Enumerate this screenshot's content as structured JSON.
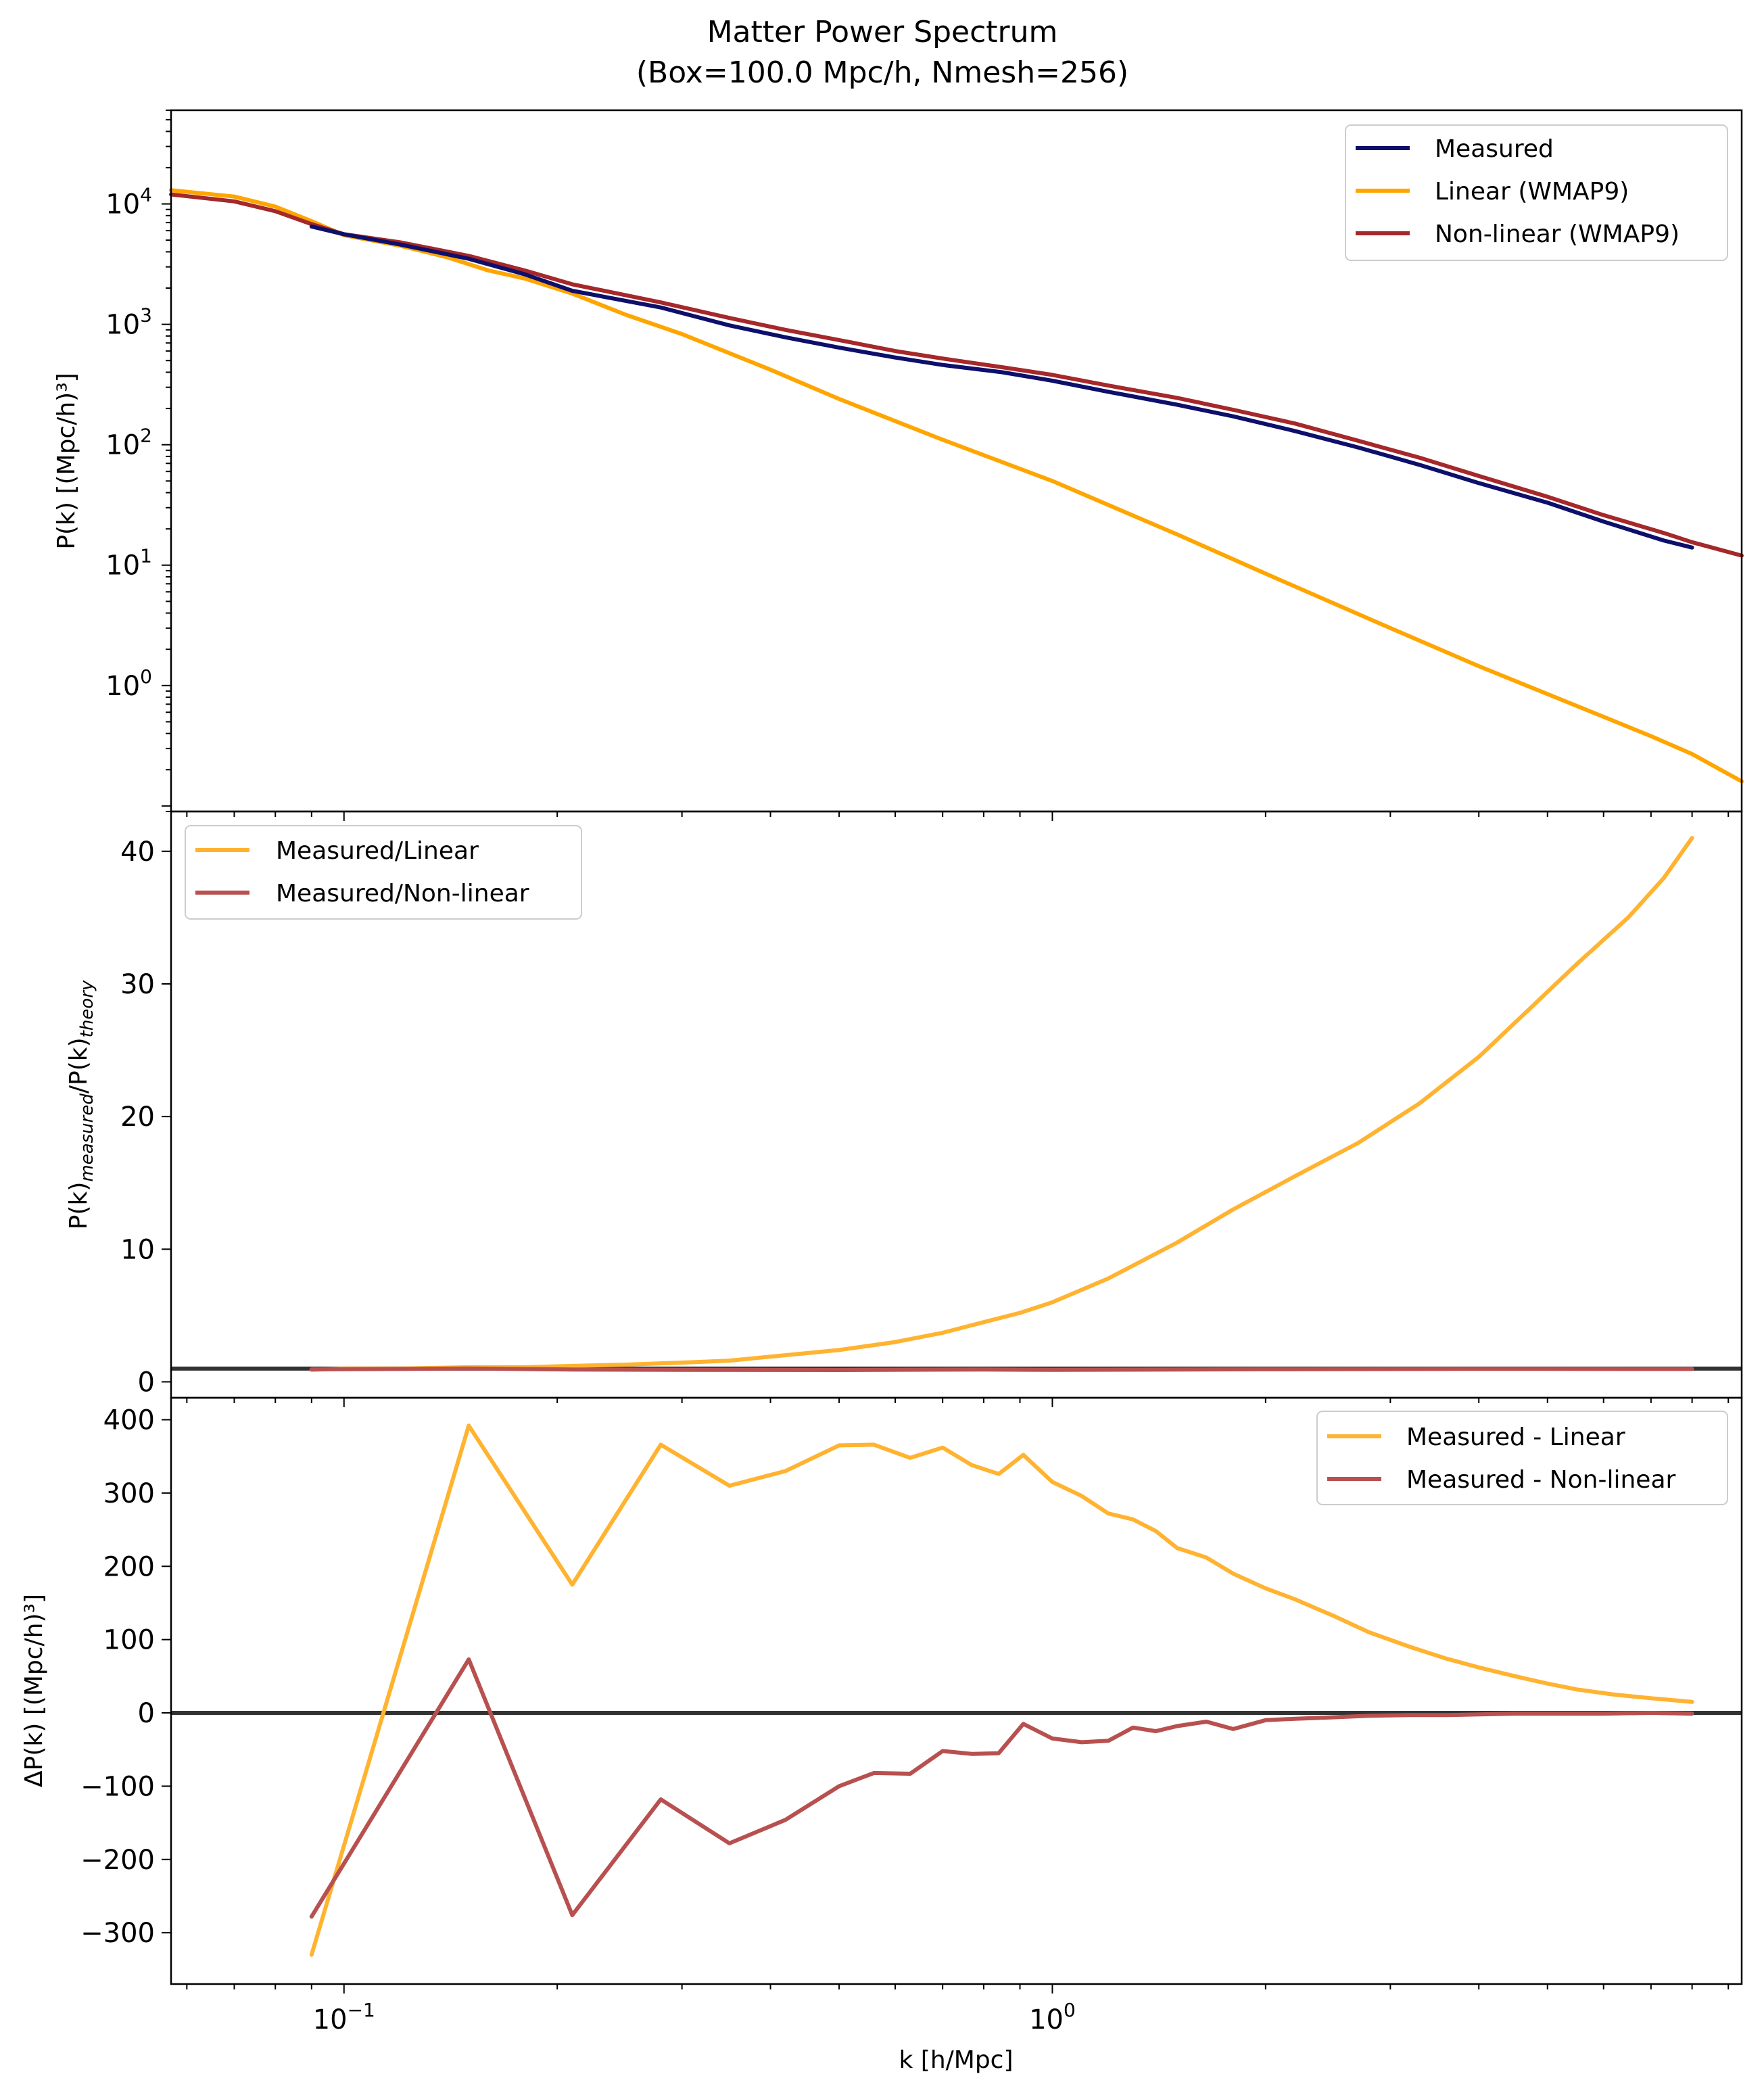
{
  "figure": {
    "title_line1": "Matter Power Spectrum",
    "title_line2": "(Box=100.0 Mpc/h, Nmesh=256)"
  },
  "colors": {
    "measured": "#0d0f6b",
    "linear": "#ffa500",
    "nonlinear": "#a5282a",
    "ratio_linear": "#ffb330",
    "ratio_nonlinear": "#b85050",
    "reference_line": "#333333"
  },
  "chart_data": [
    {
      "type": "line",
      "panel": "power-spectrum",
      "xscale": "log",
      "yscale": "log",
      "xlim": [
        0.057,
        9.4
      ],
      "ylim": [
        0.09,
        60000
      ],
      "xlabel": "",
      "ylabel": "P(k) [(Mpc/h)³]",
      "yticks": [
        {
          "value": 10000,
          "base": "10",
          "exp": "4"
        },
        {
          "value": 1000,
          "base": "10",
          "exp": "3"
        },
        {
          "value": 100,
          "base": "10",
          "exp": "2"
        },
        {
          "value": 10,
          "base": "10",
          "exp": "1"
        },
        {
          "value": 1,
          "base": "10",
          "exp": "0"
        }
      ],
      "legend_position": "top-right",
      "series": [
        {
          "name": "Measured",
          "key": "measured",
          "x": [
            0.09,
            0.1,
            0.12,
            0.15,
            0.18,
            0.21,
            0.28,
            0.35,
            0.42,
            0.5,
            0.6,
            0.7,
            0.85,
            1.0,
            1.2,
            1.5,
            1.8,
            2.2,
            2.7,
            3.3,
            4.0,
            5.0,
            6.0,
            7.3,
            8.0
          ],
          "y": [
            6500,
            5600,
            4600,
            3500,
            2600,
            1900,
            1380,
            980,
            780,
            640,
            530,
            460,
            400,
            340,
            275,
            215,
            172,
            130,
            95,
            68,
            48,
            33,
            23,
            16,
            14
          ]
        },
        {
          "name": "Linear (WMAP9)",
          "key": "linear",
          "x": [
            0.057,
            0.07,
            0.08,
            0.09,
            0.1,
            0.12,
            0.14,
            0.16,
            0.18,
            0.21,
            0.25,
            0.3,
            0.4,
            0.5,
            0.7,
            1.0,
            1.5,
            2.0,
            3.0,
            4.0,
            5.0,
            6.0,
            7.0,
            8.0,
            9.4
          ],
          "y": [
            13000,
            11500,
            9500,
            7200,
            5500,
            4500,
            3600,
            2800,
            2400,
            1800,
            1200,
            830,
            420,
            240,
            110,
            50,
            18,
            8.5,
            3.0,
            1.45,
            0.85,
            0.55,
            0.38,
            0.27,
            0.16
          ]
        },
        {
          "name": "Non-linear (WMAP9)",
          "key": "nonlinear",
          "x": [
            0.057,
            0.07,
            0.08,
            0.09,
            0.1,
            0.12,
            0.15,
            0.18,
            0.21,
            0.28,
            0.35,
            0.42,
            0.5,
            0.6,
            0.7,
            0.85,
            1.0,
            1.2,
            1.5,
            1.8,
            2.2,
            2.7,
            3.3,
            4.0,
            5.0,
            6.0,
            7.3,
            8.0,
            9.4
          ],
          "y": [
            12000,
            10500,
            8700,
            6800,
            5600,
            4800,
            3700,
            2800,
            2150,
            1520,
            1130,
            900,
            740,
            600,
            520,
            440,
            380,
            310,
            245,
            195,
            150,
            108,
            78,
            55,
            37,
            26,
            18.5,
            15.5,
            12
          ]
        }
      ]
    },
    {
      "type": "line",
      "panel": "ratio",
      "xscale": "log",
      "yscale": "linear",
      "xlim": [
        0.057,
        9.4
      ],
      "ylim": [
        -1.2,
        43
      ],
      "xlabel": "",
      "ylabel_main": "P(k)",
      "ylabel_sub1": "measured",
      "ylabel_mid": "/P(k)",
      "ylabel_sub2": "theory",
      "yticks": [
        0,
        10,
        20,
        30,
        40
      ],
      "reference_y": 1,
      "legend_position": "top-left",
      "series": [
        {
          "name": "Measured/Linear",
          "key": "ratio_linear",
          "x": [
            0.09,
            0.1,
            0.12,
            0.15,
            0.18,
            0.21,
            0.25,
            0.3,
            0.35,
            0.4,
            0.5,
            0.6,
            0.7,
            0.8,
            0.9,
            1.0,
            1.2,
            1.5,
            1.8,
            2.2,
            2.7,
            3.3,
            4.0,
            4.8,
            5.5,
            6.5,
            7.3,
            8.0
          ],
          "y": [
            0.9,
            1.0,
            1.0,
            1.1,
            1.1,
            1.2,
            1.3,
            1.45,
            1.6,
            1.9,
            2.4,
            3.0,
            3.7,
            4.5,
            5.2,
            6.0,
            7.8,
            10.5,
            13.0,
            15.5,
            18.0,
            21.0,
            24.5,
            28.5,
            31.5,
            35.0,
            38.0,
            41.0
          ]
        },
        {
          "name": "Measured/Non-linear",
          "key": "ratio_nonlinear",
          "x": [
            0.09,
            0.15,
            0.21,
            0.3,
            0.5,
            0.8,
            1.0,
            2.0,
            4.0,
            8.0
          ],
          "y": [
            0.94,
            1.0,
            0.93,
            0.9,
            0.89,
            0.93,
            0.9,
            0.95,
            0.98,
            0.97
          ]
        }
      ]
    },
    {
      "type": "line",
      "panel": "difference",
      "xscale": "log",
      "yscale": "linear",
      "xlim": [
        0.057,
        9.4
      ],
      "ylim": [
        -370,
        430
      ],
      "xlabel": "k [h/Mpc]",
      "ylabel": "ΔP(k) [(Mpc/h)³]",
      "yticks": [
        {
          "value": 400,
          "label": "400"
        },
        {
          "value": 300,
          "label": "300"
        },
        {
          "value": 200,
          "label": "200"
        },
        {
          "value": 100,
          "label": "100"
        },
        {
          "value": 0,
          "label": "0"
        },
        {
          "value": -100,
          "label": "−100"
        },
        {
          "value": -200,
          "label": "−200"
        },
        {
          "value": -300,
          "label": "−300"
        }
      ],
      "xticks": [
        {
          "value": 0.1,
          "base": "10",
          "exp": "−1"
        },
        {
          "value": 1,
          "base": "10",
          "exp": "0"
        }
      ],
      "reference_y": 0,
      "legend_position": "top-right",
      "series": [
        {
          "name": "Measured - Linear",
          "key": "ratio_linear",
          "x": [
            0.09,
            0.15,
            0.21,
            0.28,
            0.35,
            0.42,
            0.5,
            0.56,
            0.63,
            0.7,
            0.77,
            0.84,
            0.91,
            1.0,
            1.1,
            1.2,
            1.3,
            1.4,
            1.5,
            1.65,
            1.8,
            2.0,
            2.2,
            2.5,
            2.8,
            3.2,
            3.6,
            4.0,
            4.5,
            5.0,
            5.5,
            6.2,
            7.0,
            8.0
          ],
          "y": [
            -330,
            392,
            175,
            366,
            310,
            330,
            365,
            366,
            348,
            362,
            338,
            326,
            352,
            315,
            296,
            272,
            264,
            248,
            225,
            212,
            190,
            170,
            155,
            132,
            110,
            90,
            74,
            62,
            50,
            40,
            32,
            25,
            20,
            15
          ]
        },
        {
          "name": "Measured - Non-linear",
          "key": "ratio_nonlinear",
          "x": [
            0.09,
            0.15,
            0.21,
            0.28,
            0.35,
            0.42,
            0.5,
            0.56,
            0.63,
            0.7,
            0.77,
            0.84,
            0.91,
            1.0,
            1.1,
            1.2,
            1.3,
            1.4,
            1.5,
            1.65,
            1.8,
            2.0,
            2.2,
            2.5,
            2.8,
            3.2,
            3.6,
            4.0,
            4.5,
            5.0,
            6.0,
            7.0,
            8.0
          ],
          "y": [
            -278,
            73,
            -276,
            -118,
            -178,
            -146,
            -100,
            -82,
            -83,
            -52,
            -56,
            -55,
            -15,
            -35,
            -40,
            -38,
            -20,
            -25,
            -18,
            -12,
            -22,
            -10,
            -8,
            -6,
            -4,
            -3,
            -3,
            -2,
            -1,
            -1,
            -1,
            0,
            -1
          ]
        }
      ]
    }
  ]
}
